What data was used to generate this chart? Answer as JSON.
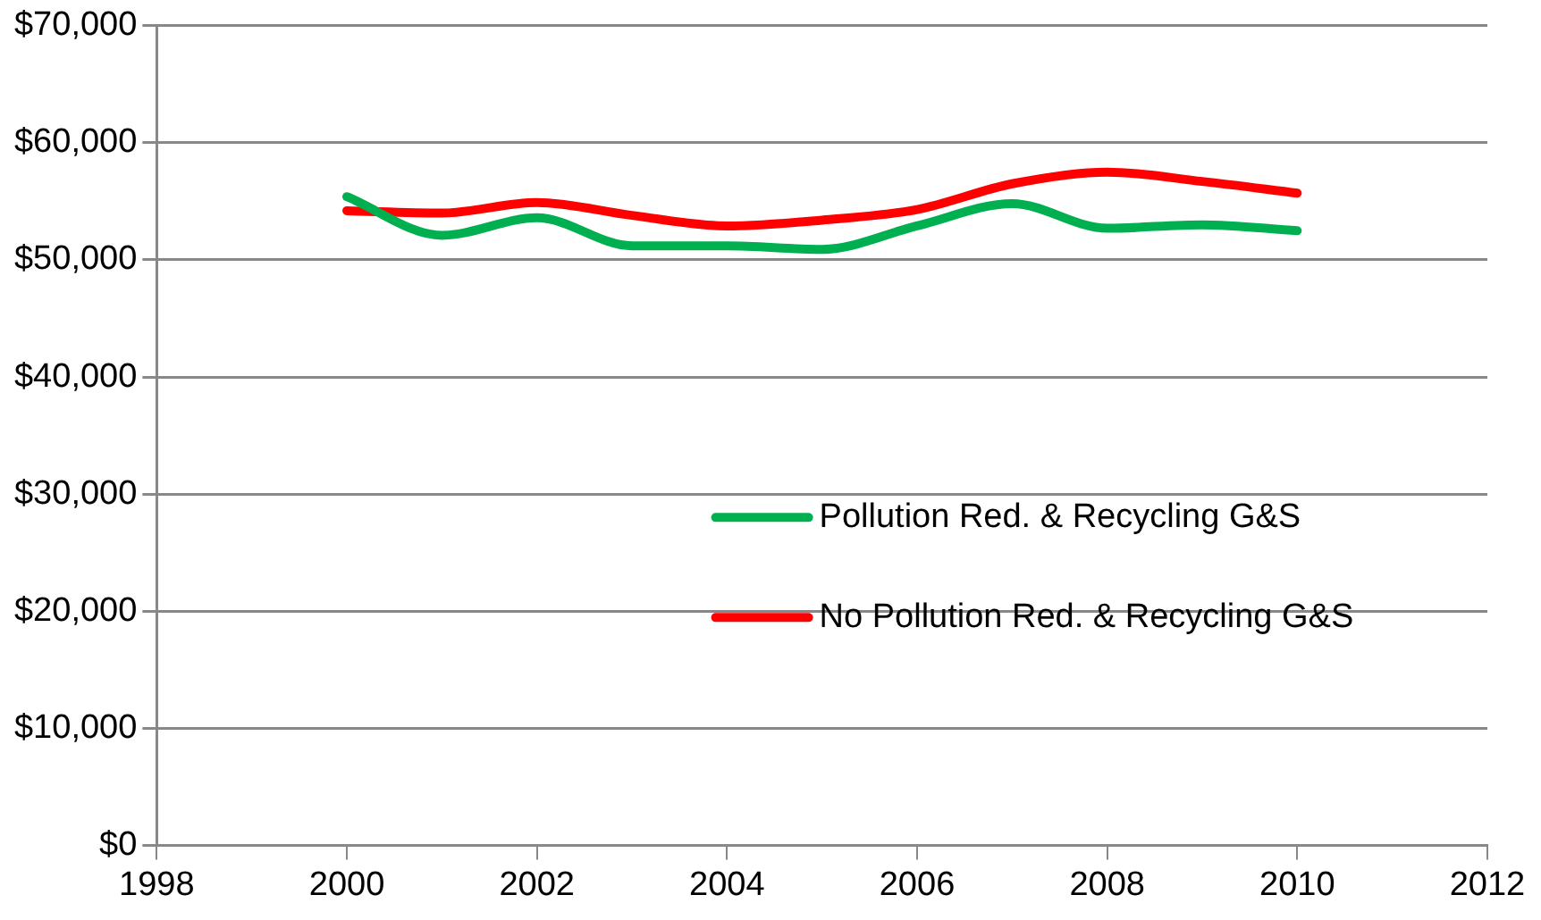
{
  "chart_data": {
    "type": "line",
    "x": [
      2000,
      2001,
      2002,
      2003,
      2004,
      2005,
      2006,
      2007,
      2008,
      2009,
      2010
    ],
    "series": [
      {
        "name": "Pollution Red. & Recycling G&S",
        "color": "#00b050",
        "values": [
          55400,
          52100,
          53600,
          51200,
          51200,
          50900,
          52900,
          54800,
          52700,
          53000,
          52500
        ]
      },
      {
        "name": "No Pollution Red. & Recycling G&S",
        "color": "#ff0000",
        "values": [
          54200,
          54000,
          54900,
          53800,
          52900,
          53400,
          54300,
          56500,
          57500,
          56700,
          55700
        ]
      }
    ],
    "xlim": [
      1998,
      2012
    ],
    "xticks": [
      1998,
      2000,
      2002,
      2004,
      2006,
      2008,
      2010,
      2012
    ],
    "ylim": [
      0,
      70000
    ],
    "yticks": [
      {
        "value": 0,
        "label": "$0"
      },
      {
        "value": 10000,
        "label": "$10,000"
      },
      {
        "value": 20000,
        "label": "$20,000"
      },
      {
        "value": 30000,
        "label": "$30,000"
      },
      {
        "value": 40000,
        "label": "$40,000"
      },
      {
        "value": 50000,
        "label": "$50,000"
      },
      {
        "value": 60000,
        "label": "$60,000"
      },
      {
        "value": 70000,
        "label": "$70,000"
      }
    ],
    "grid": "y",
    "legend": "right",
    "marker": "none",
    "line_style": "solid"
  }
}
